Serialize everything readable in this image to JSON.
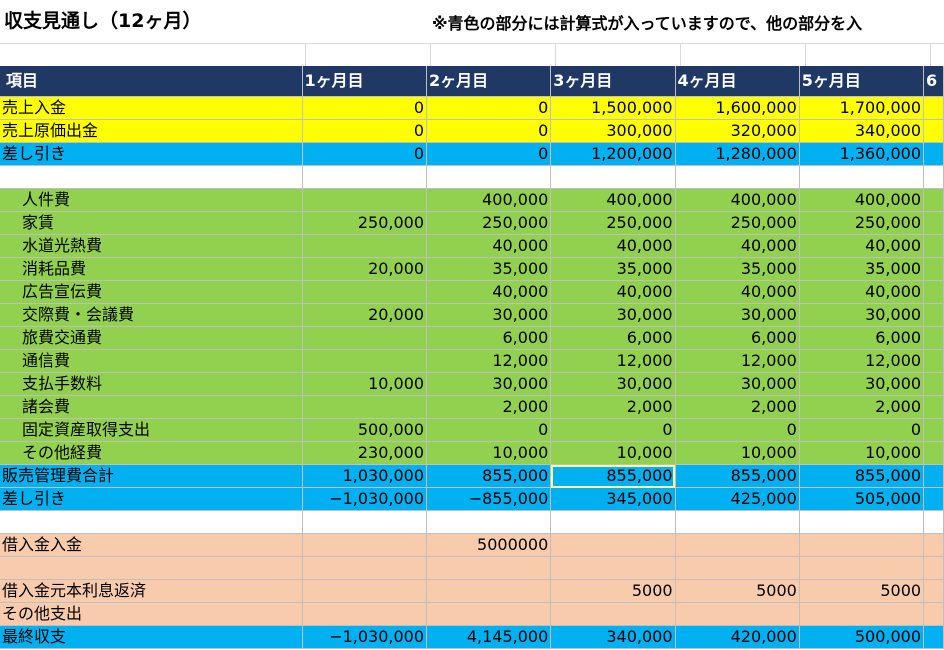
{
  "title": "収支見通し（12ヶ月）",
  "note": "※青色の部分には計算式が入っていますので、他の部分を入",
  "headers": [
    "項目",
    "1ヶ月目",
    "2ヶ月目",
    "3ヶ月目",
    "4ヶ月目",
    "5ヶ月目",
    "6"
  ],
  "rows": [
    {
      "style": "yellow",
      "indent": false,
      "label": "売上入金",
      "values": [
        "0",
        "0",
        "1,500,000",
        "1,600,000",
        "1,700,000"
      ]
    },
    {
      "style": "yellow",
      "indent": false,
      "label": "売上原価出金",
      "values": [
        "0",
        "0",
        "300,000",
        "320,000",
        "340,000"
      ]
    },
    {
      "style": "blue",
      "indent": false,
      "label": "差し引き",
      "values": [
        "0",
        "0",
        "1,200,000",
        "1,280,000",
        "1,360,000"
      ]
    },
    {
      "style": "white",
      "indent": false,
      "label": "",
      "values": [
        "",
        "",
        "",
        "",
        ""
      ]
    },
    {
      "style": "green",
      "indent": true,
      "label": "人件費",
      "values": [
        "",
        "400,000",
        "400,000",
        "400,000",
        "400,000"
      ]
    },
    {
      "style": "green",
      "indent": true,
      "label": "家賃",
      "values": [
        "250,000",
        "250,000",
        "250,000",
        "250,000",
        "250,000"
      ]
    },
    {
      "style": "green",
      "indent": true,
      "label": "水道光熱費",
      "values": [
        "",
        "40,000",
        "40,000",
        "40,000",
        "40,000"
      ]
    },
    {
      "style": "green",
      "indent": true,
      "label": "消耗品費",
      "values": [
        "20,000",
        "35,000",
        "35,000",
        "35,000",
        "35,000"
      ]
    },
    {
      "style": "green",
      "indent": true,
      "label": "広告宣伝費",
      "values": [
        "",
        "40,000",
        "40,000",
        "40,000",
        "40,000"
      ]
    },
    {
      "style": "green",
      "indent": true,
      "label": "交際費・会議費",
      "values": [
        "20,000",
        "30,000",
        "30,000",
        "30,000",
        "30,000"
      ]
    },
    {
      "style": "green",
      "indent": true,
      "label": "旅費交通費",
      "values": [
        "",
        "6,000",
        "6,000",
        "6,000",
        "6,000"
      ]
    },
    {
      "style": "green",
      "indent": true,
      "label": "通信費",
      "values": [
        "",
        "12,000",
        "12,000",
        "12,000",
        "12,000"
      ]
    },
    {
      "style": "green",
      "indent": true,
      "label": "支払手数料",
      "values": [
        "10,000",
        "30,000",
        "30,000",
        "30,000",
        "30,000"
      ]
    },
    {
      "style": "green",
      "indent": true,
      "label": "諸会費",
      "values": [
        "",
        "2,000",
        "2,000",
        "2,000",
        "2,000"
      ]
    },
    {
      "style": "green",
      "indent": true,
      "label": "固定資産取得支出",
      "values": [
        "500,000",
        "0",
        "0",
        "0",
        "0"
      ]
    },
    {
      "style": "green",
      "indent": true,
      "label": "その他経費",
      "values": [
        "230,000",
        "10,000",
        "10,000",
        "10,000",
        "10,000"
      ]
    },
    {
      "style": "blue",
      "indent": false,
      "label": "販売管理費合計",
      "values": [
        "1,030,000",
        "855,000",
        "855,000",
        "855,000",
        "855,000"
      ]
    },
    {
      "style": "blue",
      "indent": false,
      "label": "差し引き",
      "values": [
        "−1,030,000",
        "−855,000",
        "345,000",
        "425,000",
        "505,000"
      ]
    },
    {
      "style": "white",
      "indent": false,
      "label": "",
      "values": [
        "",
        "",
        "",
        "",
        ""
      ]
    },
    {
      "style": "peach",
      "indent": false,
      "label": "借入金入金",
      "values": [
        "",
        "5000000",
        "",
        "",
        ""
      ]
    },
    {
      "style": "peach",
      "indent": false,
      "label": "",
      "values": [
        "",
        "",
        "",
        "",
        ""
      ]
    },
    {
      "style": "peach",
      "indent": false,
      "label": "借入金元本利息返済",
      "values": [
        "",
        "",
        "5000",
        "5000",
        "5000"
      ]
    },
    {
      "style": "peach",
      "indent": false,
      "label": "その他支出",
      "values": [
        "",
        "",
        "",
        "",
        ""
      ]
    },
    {
      "style": "blue",
      "indent": false,
      "label": "最終収支",
      "values": [
        "−1,030,000",
        "4,145,000",
        "340,000",
        "420,000",
        "500,000"
      ]
    }
  ]
}
